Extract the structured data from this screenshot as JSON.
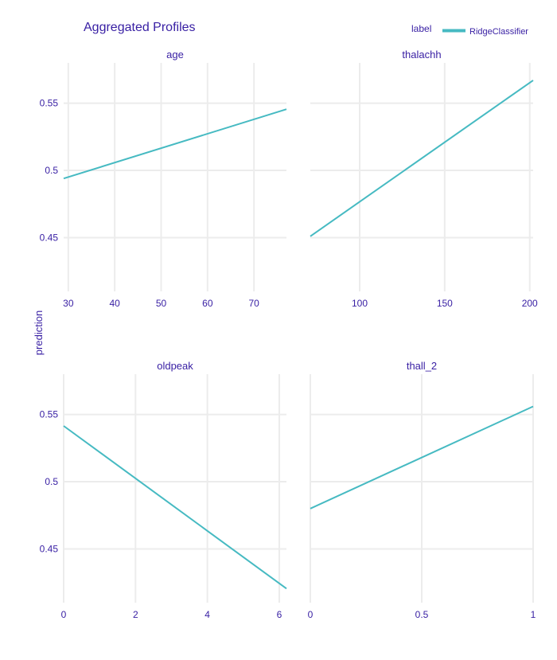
{
  "chart_data": {
    "type": "line",
    "title": "Aggregated Profiles",
    "ylabel": "prediction",
    "legend": {
      "title": "label",
      "placement": "top-right",
      "series": [
        {
          "name": "RidgeClassifier",
          "color": "#46bac2"
        }
      ]
    },
    "y_ticks": [
      "0.45",
      "0.5",
      "0.55"
    ],
    "panels": [
      {
        "name": "age",
        "xlim": [
          29,
          77
        ],
        "ylim": [
          0.41,
          0.58
        ],
        "x_ticks": [
          {
            "v": 30,
            "label": "30"
          },
          {
            "v": 40,
            "label": "40"
          },
          {
            "v": 50,
            "label": "50"
          },
          {
            "v": 60,
            "label": "60"
          },
          {
            "v": 70,
            "label": "70"
          }
        ],
        "series": [
          {
            "name": "RidgeClassifier",
            "x": [
              29,
              77
            ],
            "y": [
              0.494,
              0.5455
            ]
          }
        ]
      },
      {
        "name": "thalachh",
        "xlim": [
          71,
          202
        ],
        "ylim": [
          0.41,
          0.58
        ],
        "x_ticks": [
          {
            "v": 100,
            "label": "100"
          },
          {
            "v": 150,
            "label": "150"
          },
          {
            "v": 200,
            "label": "200"
          }
        ],
        "series": [
          {
            "name": "RidgeClassifier",
            "x": [
              71,
              202
            ],
            "y": [
              0.451,
              0.567
            ]
          }
        ]
      },
      {
        "name": "oldpeak",
        "xlim": [
          0,
          6.2
        ],
        "ylim": [
          0.41,
          0.58
        ],
        "x_ticks": [
          {
            "v": 0,
            "label": "0"
          },
          {
            "v": 2,
            "label": "2"
          },
          {
            "v": 4,
            "label": "4"
          },
          {
            "v": 6,
            "label": "6"
          }
        ],
        "series": [
          {
            "name": "RidgeClassifier",
            "x": [
              0,
              6.2
            ],
            "y": [
              0.5415,
              0.4205
            ]
          }
        ]
      },
      {
        "name": "thall_2",
        "xlim": [
          0,
          1
        ],
        "ylim": [
          0.41,
          0.58
        ],
        "x_ticks": [
          {
            "v": 0,
            "label": "0"
          },
          {
            "v": 0.5,
            "label": "0.5"
          },
          {
            "v": 1,
            "label": "1"
          }
        ],
        "series": [
          {
            "name": "RidgeClassifier",
            "x": [
              0,
              1
            ],
            "y": [
              0.48,
              0.556
            ]
          }
        ]
      }
    ]
  }
}
